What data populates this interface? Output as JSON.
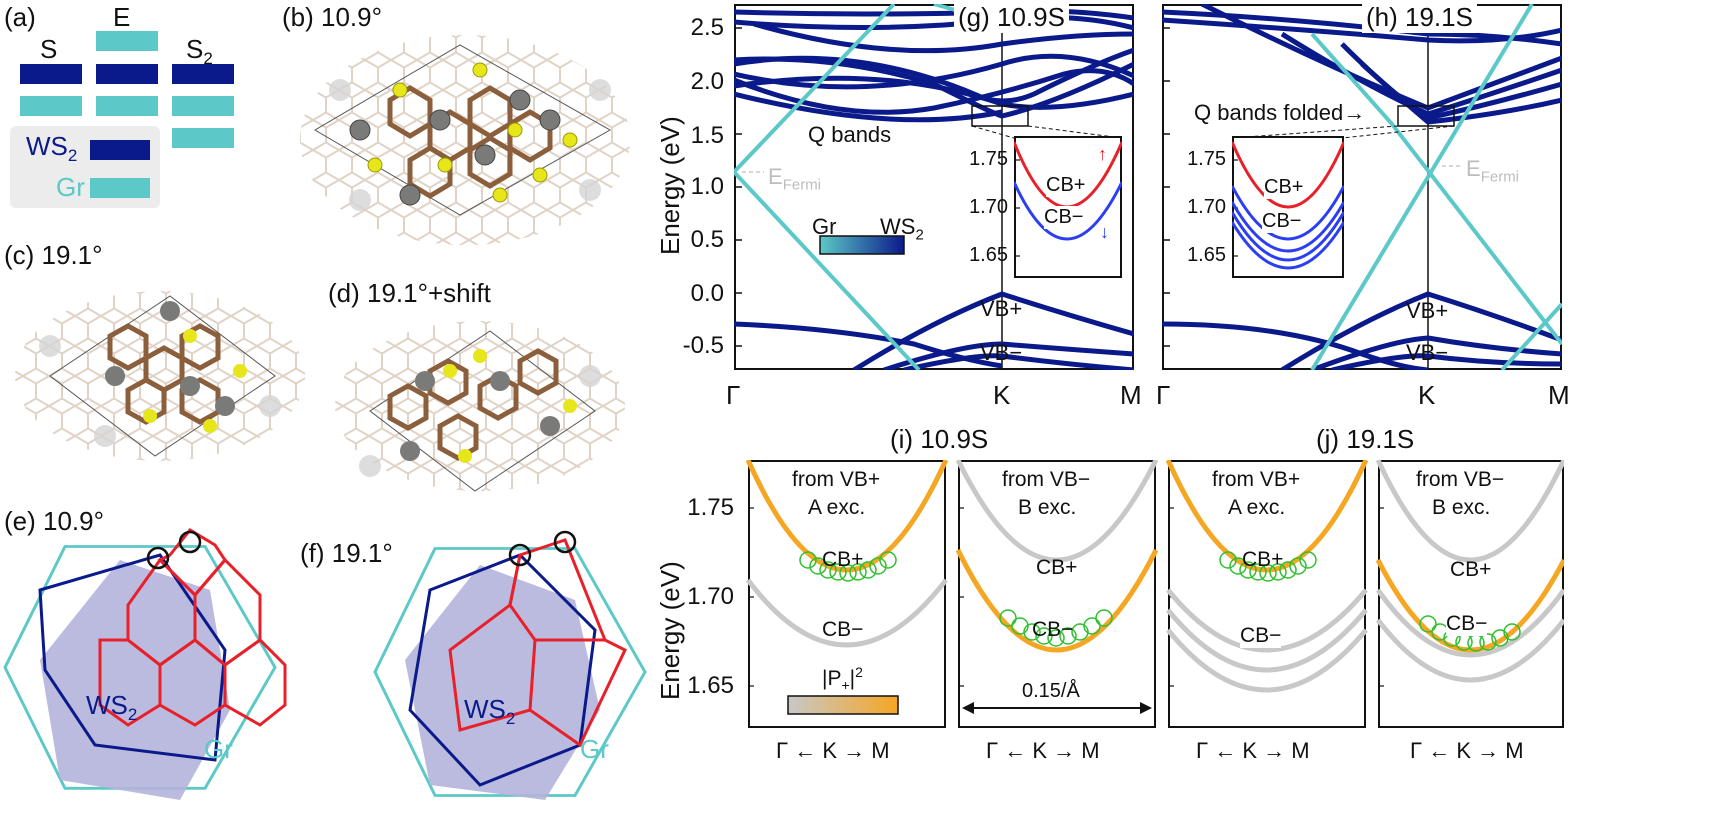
{
  "panels": {
    "a": {
      "label": "(a)",
      "cols": [
        "S",
        "E",
        "S2"
      ],
      "legend": [
        "WS2",
        "Gr"
      ]
    },
    "b": {
      "label": "(b) 10.9°"
    },
    "c": {
      "label": "(c) 19.1°"
    },
    "d": {
      "label": "(d) 19.1°+shift"
    },
    "e": {
      "label": "(e) 10.9°",
      "ws2": "WS2",
      "gr": "Gr"
    },
    "f": {
      "label": "(f) 19.1°",
      "ws2": "WS2",
      "gr": "Gr"
    },
    "g": {
      "label": "(g) 10.9S",
      "q_bands": "Q bands",
      "efermi": "EFermi",
      "cb_plus": "CB+",
      "cb_minus": "CB−",
      "vb_plus": "VB+",
      "vb_minus": "VB−",
      "colorbar_left": "Gr",
      "colorbar_right": "WS2"
    },
    "h": {
      "label": "(h) 19.1S",
      "q_bands": "Q bands folded→",
      "efermi": "EFermi",
      "cb_plus": "CB+",
      "cb_minus": "CB−",
      "vb_plus": "VB+",
      "vb_minus": "VB−"
    },
    "i": {
      "label": "(i) 10.9S"
    },
    "j": {
      "label": "(j) 19.1S"
    }
  },
  "colors": {
    "ws2": "#0b1a8a",
    "gr": "#5cc8c8",
    "red": "#e8202a",
    "blue": "#2b3ff0",
    "orange": "#f5a623",
    "green": "#2fc02f",
    "grey": "#c8c8c8"
  },
  "chart_data": [
    {
      "type": "line",
      "id": "g",
      "ylabel": "Energy (eV)",
      "ylim": [
        -0.8,
        2.7
      ],
      "yticks": [
        "2.5",
        "2.0",
        "1.5",
        "1.0",
        "0.5",
        "0.0",
        "-0.5"
      ],
      "xticks": [
        "Γ",
        "K",
        "M"
      ],
      "inset": {
        "yticks": [
          "1.75",
          "1.70",
          "1.65"
        ],
        "ylim": [
          1.63,
          1.78
        ]
      }
    },
    {
      "type": "line",
      "id": "h",
      "ylim": [
        -0.8,
        2.7
      ],
      "xticks": [
        "Γ",
        "K",
        "M"
      ],
      "inset": {
        "yticks": [
          "1.75",
          "1.70",
          "1.65"
        ],
        "ylim": [
          1.63,
          1.78
        ]
      }
    },
    {
      "type": "line",
      "id": "i-j",
      "ylabel": "Energy (eV)",
      "ylim": [
        1.63,
        1.77
      ],
      "yticks": [
        "1.75",
        "1.70",
        "1.65"
      ],
      "subpanels": [
        {
          "title": "from VB+",
          "subtitle": "A exc.",
          "labels": [
            "CB+",
            "CB−"
          ],
          "xlabel": "Γ ← K → M",
          "colorbar": "|P+|2"
        },
        {
          "title": "from VB−",
          "subtitle": "B exc.",
          "labels": [
            "CB+",
            "CB−"
          ],
          "xlabel": "Γ ← K → M",
          "scale": "0.15/Å"
        },
        {
          "title": "from VB+",
          "subtitle": "A exc.",
          "labels": [
            "CB+",
            "CB−"
          ],
          "xlabel": "Γ ← K → M"
        },
        {
          "title": "from VB−",
          "subtitle": "B exc.",
          "labels": [
            "CB+",
            "CB−"
          ],
          "xlabel": "Γ ← K → M"
        }
      ]
    }
  ]
}
